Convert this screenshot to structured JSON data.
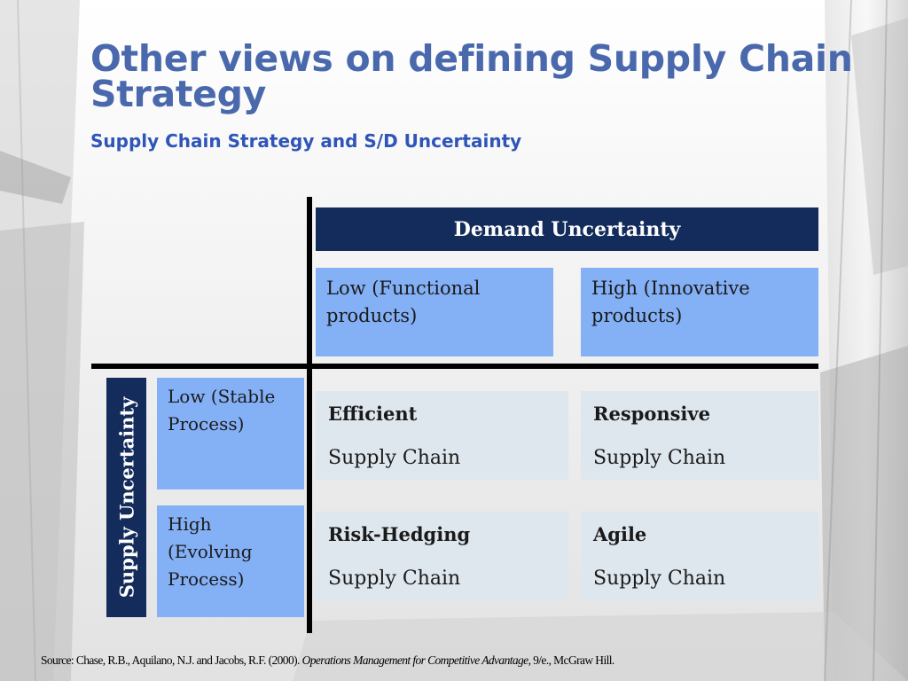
{
  "slide": {
    "title": "Other views on defining Supply Chain Strategy",
    "subtitle": "Supply Chain Strategy and S/D Uncertainty"
  },
  "matrix": {
    "column_header": "Demand Uncertainty",
    "row_header": "Supply Uncertainty",
    "columns": [
      {
        "label": "Low (Functional products)"
      },
      {
        "label": "High (Innovative products)"
      }
    ],
    "rows": [
      {
        "label": "Low (Stable Process)"
      },
      {
        "label": "High (Evolving Process)"
      }
    ],
    "cells": [
      {
        "name": "Efficient",
        "line": "Supply Chain"
      },
      {
        "name": "Responsive",
        "line": "Supply Chain"
      },
      {
        "name": "Risk-Hedging",
        "line": "Supply Chain"
      },
      {
        "name": "Agile",
        "line": "Supply Chain"
      }
    ]
  },
  "source": {
    "prefix": "Source: Chase, R.B., Aquilano, N.J. and Jacobs, R.F. (2000).",
    "book": "Operations Management for Competitive Advantage",
    "suffix": ", 9/e., McGraw Hill."
  }
}
